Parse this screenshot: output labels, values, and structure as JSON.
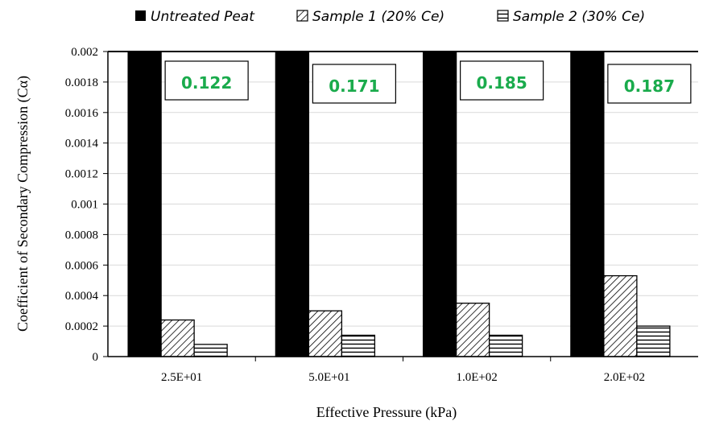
{
  "chart_data": {
    "type": "bar",
    "xlabel": "Effective Pressure (kPa)",
    "ylabel": "Coefficient of Secondary Compression (Cα)",
    "ylim": [
      0,
      0.002
    ],
    "y_ticks": [
      "0",
      "0.0002",
      "0.0004",
      "0.0006",
      "0.0008",
      "0.001",
      "0.0012",
      "0.0014",
      "0.0016",
      "0.0018",
      "0.002"
    ],
    "categories": [
      "2.5E+01",
      "5.0E+01",
      "1.0E+02",
      "2.0E+02"
    ],
    "series": [
      {
        "name": "Untreated Peat",
        "values": [
          0.122,
          0.171,
          0.185,
          0.187
        ],
        "pattern": "solid"
      },
      {
        "name": "Sample 1 (20% Ce)",
        "values": [
          0.00024,
          0.0003,
          0.00035,
          0.00053
        ],
        "pattern": "diagonal-hatch"
      },
      {
        "name": "Sample 2 (30% Ce)",
        "values": [
          8e-05,
          0.00014,
          0.00014,
          0.0002
        ],
        "pattern": "horizontal-hatch"
      }
    ],
    "annotations": [
      "0.122",
      "0.171",
      "0.185",
      "0.187"
    ],
    "legend_position": "top",
    "grid": true,
    "colors": {
      "bar": "#000000",
      "annotation_text": "#1aab4c",
      "grid": "#d9d9d9"
    }
  }
}
